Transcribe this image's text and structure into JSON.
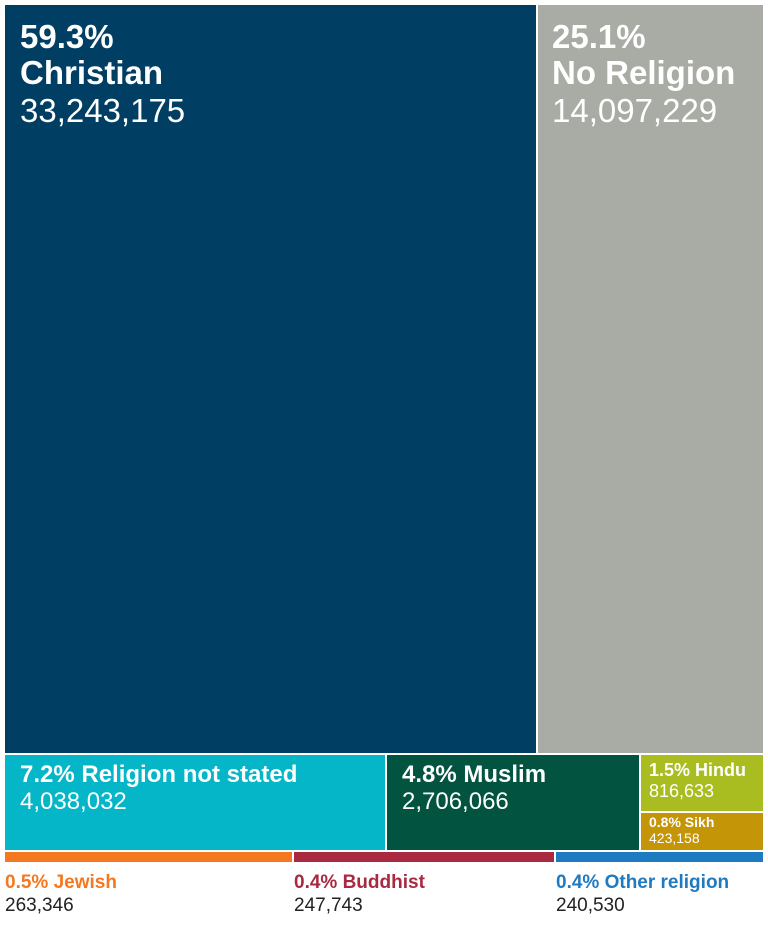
{
  "chart_data": {
    "type": "treemap",
    "items": [
      {
        "pct": "59.3%",
        "name": "Christian",
        "value": 33243175,
        "value_label": "33,243,175",
        "color": "#003f63"
      },
      {
        "pct": "25.1%",
        "name": "No Religion",
        "value": 14097229,
        "value_label": "14,097,229",
        "color": "#a9aca5"
      },
      {
        "pct": "7.2%",
        "name": "Religion not stated",
        "value": 4038032,
        "value_label": "4,038,032",
        "color": "#05b5c8"
      },
      {
        "pct": "4.8%",
        "name": "Muslim",
        "value": 2706066,
        "value_label": "2,706,066",
        "color": "#02533f"
      },
      {
        "pct": "1.5%",
        "name": "Hindu",
        "value": 816633,
        "value_label": "816,633",
        "color": "#a9bc20"
      },
      {
        "pct": "0.8%",
        "name": "Sikh",
        "value": 423158,
        "value_label": "423,158",
        "color": "#c39507"
      },
      {
        "pct": "0.5%",
        "name": "Jewish",
        "value": 263346,
        "value_label": "263,346",
        "color": "#f47820"
      },
      {
        "pct": "0.4%",
        "name": "Buddhist",
        "value": 247743,
        "value_label": "247,743",
        "color": "#a82940"
      },
      {
        "pct": "0.4%",
        "name": "Other religion",
        "value": 240530,
        "value_label": "240,530",
        "color": "#1f7bc1"
      }
    ],
    "labels": {
      "christian_head": "59.3%",
      "christian_name": "Christian",
      "noreligion_head": "25.1%",
      "noreligion_name": "No Religion",
      "notstated_head": "7.2% Religion not stated",
      "muslim_head": "4.8% Muslim",
      "hindu_head": "1.5% Hindu",
      "sikh_head": "0.8% Sikh",
      "jewish_head": "0.5% Jewish",
      "buddhist_head": "0.4% Buddhist",
      "other_head": "0.4% Other religion"
    }
  }
}
